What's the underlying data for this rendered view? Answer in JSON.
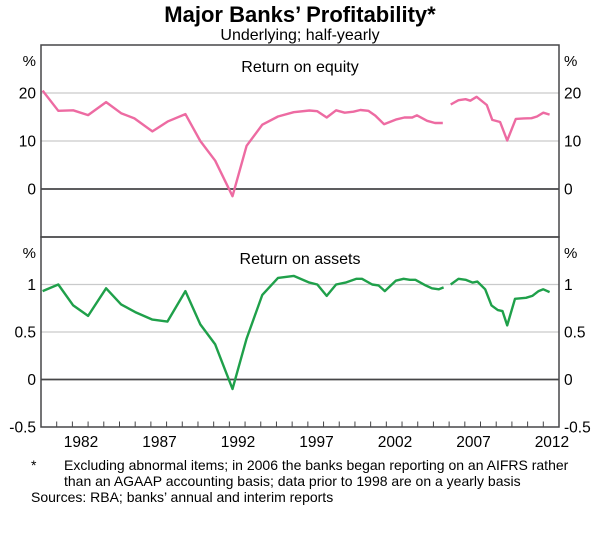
{
  "header": {
    "title": "Major Banks’ Profitability*",
    "subtitle": "Underlying; half-yearly"
  },
  "colors": {
    "roe_line": "#ed6ba2",
    "roa_line": "#1fa04a",
    "grid": "#c9cacb",
    "frame": "#464648",
    "text": "#000000",
    "background": "#ffffff"
  },
  "x_axis": {
    "range": [
      1980,
      2013
    ],
    "tick_start": 1981,
    "tick_end": 2012,
    "label_years": [
      1982,
      1987,
      1992,
      1997,
      2002,
      2007,
      2012
    ],
    "labels": [
      "1982",
      "1987",
      "1992",
      "1997",
      "2002",
      "2007",
      "2012"
    ]
  },
  "chart_data": [
    {
      "type": "line",
      "title": "Return on equity",
      "unit": "%",
      "ylim": [
        -10,
        30
      ],
      "gridlines": [
        10,
        20
      ],
      "zeroline": 0,
      "grid_on": true,
      "yticks": [
        {
          "v": 20,
          "label": "20"
        },
        {
          "v": 10,
          "label": "10"
        },
        {
          "v": 0,
          "label": "0"
        }
      ],
      "series": [
        {
          "name": "Return on equity (AGAAP, pre-2006)",
          "color_key": "roe_line",
          "points": [
            [
              1980.1,
              20.5
            ],
            [
              1981.1,
              16.3
            ],
            [
              1982.05,
              16.4
            ],
            [
              1983.0,
              15.4
            ],
            [
              1984.15,
              18.1
            ],
            [
              1985.1,
              15.8
            ],
            [
              1985.95,
              14.7
            ],
            [
              1987.1,
              12.0
            ],
            [
              1988.1,
              14.1
            ],
            [
              1989.2,
              15.6
            ],
            [
              1990.15,
              10.0
            ],
            [
              1991.1,
              5.9
            ],
            [
              1992.2,
              -1.5
            ],
            [
              1993.1,
              9.0
            ],
            [
              1994.1,
              13.4
            ],
            [
              1995.1,
              15.1
            ],
            [
              1996.1,
              16.0
            ],
            [
              1997.1,
              16.35
            ],
            [
              1997.6,
              16.2
            ],
            [
              1998.2,
              14.9
            ],
            [
              1998.8,
              16.4
            ],
            [
              1999.35,
              15.9
            ],
            [
              1999.9,
              16.1
            ],
            [
              2000.35,
              16.45
            ],
            [
              2000.85,
              16.3
            ],
            [
              2001.3,
              15.3
            ],
            [
              2001.85,
              13.5
            ],
            [
              2002.6,
              14.45
            ],
            [
              2003.15,
              14.9
            ],
            [
              2003.65,
              14.9
            ],
            [
              2003.95,
              15.35
            ],
            [
              2004.6,
              14.2
            ],
            [
              2005.1,
              13.75
            ],
            [
              2005.6,
              13.75
            ]
          ]
        },
        {
          "name": "Return on equity (AIFRS, 2006 onwards)",
          "color_key": "roe_line",
          "points": [
            [
              2006.1,
              17.6
            ],
            [
              2006.6,
              18.5
            ],
            [
              2007.05,
              18.7
            ],
            [
              2007.35,
              18.4
            ],
            [
              2007.75,
              19.2
            ],
            [
              2008.4,
              17.5
            ],
            [
              2008.75,
              14.4
            ],
            [
              2009.25,
              13.95
            ],
            [
              2009.7,
              10.1
            ],
            [
              2010.25,
              14.6
            ],
            [
              2010.75,
              14.7
            ],
            [
              2011.25,
              14.75
            ],
            [
              2011.6,
              15.1
            ],
            [
              2012.0,
              15.9
            ],
            [
              2012.4,
              15.5
            ]
          ]
        }
      ]
    },
    {
      "type": "line",
      "title": "Return on assets",
      "unit": "%",
      "ylim": [
        -0.5,
        1.5
      ],
      "gridlines": [
        0.5,
        1
      ],
      "zeroline": 0,
      "grid_on": true,
      "yticks": [
        {
          "v": 1,
          "label": "1"
        },
        {
          "v": 0.5,
          "label": "0.5"
        },
        {
          "v": 0,
          "label": "0"
        },
        {
          "v": -0.5,
          "label": "-0.5"
        }
      ],
      "series": [
        {
          "name": "Return on assets (AGAAP, pre-2006)",
          "color_key": "roa_line",
          "points": [
            [
              1980.1,
              0.93
            ],
            [
              1981.1,
              1.0
            ],
            [
              1982.05,
              0.78
            ],
            [
              1983.0,
              0.67
            ],
            [
              1984.15,
              0.96
            ],
            [
              1985.1,
              0.79
            ],
            [
              1986.0,
              0.71
            ],
            [
              1987.1,
              0.63
            ],
            [
              1988.05,
              0.61
            ],
            [
              1989.2,
              0.93
            ],
            [
              1990.15,
              0.58
            ],
            [
              1991.1,
              0.37
            ],
            [
              1992.2,
              -0.1
            ],
            [
              1993.1,
              0.43
            ],
            [
              1994.1,
              0.89
            ],
            [
              1995.1,
              1.07
            ],
            [
              1996.1,
              1.09
            ],
            [
              1997.1,
              1.02
            ],
            [
              1997.6,
              1.0
            ],
            [
              1998.2,
              0.88
            ],
            [
              1998.8,
              1.0
            ],
            [
              1999.4,
              1.02
            ],
            [
              2000.1,
              1.06
            ],
            [
              2000.45,
              1.06
            ],
            [
              2001.1,
              1.0
            ],
            [
              2001.5,
              0.99
            ],
            [
              2001.9,
              0.93
            ],
            [
              2002.6,
              1.04
            ],
            [
              2003.1,
              1.06
            ],
            [
              2003.5,
              1.05
            ],
            [
              2003.85,
              1.05
            ],
            [
              2004.5,
              0.99
            ],
            [
              2004.9,
              0.96
            ],
            [
              2005.35,
              0.95
            ],
            [
              2005.65,
              0.97
            ]
          ]
        },
        {
          "name": "Return on assets (AIFRS, 2006 onwards)",
          "color_key": "roa_line",
          "points": [
            [
              2006.1,
              1.0
            ],
            [
              2006.6,
              1.06
            ],
            [
              2007.05,
              1.05
            ],
            [
              2007.5,
              1.02
            ],
            [
              2007.8,
              1.03
            ],
            [
              2008.3,
              0.95
            ],
            [
              2008.7,
              0.78
            ],
            [
              2009.1,
              0.73
            ],
            [
              2009.4,
              0.72
            ],
            [
              2009.7,
              0.57
            ],
            [
              2010.2,
              0.85
            ],
            [
              2010.9,
              0.86
            ],
            [
              2011.3,
              0.88
            ],
            [
              2011.7,
              0.93
            ],
            [
              2012.0,
              0.95
            ],
            [
              2012.4,
              0.92
            ]
          ]
        }
      ]
    }
  ],
  "footnote": {
    "symbol": "*",
    "lines": [
      "Excluding abnormal items; in 2006 the banks began reporting on an AIFRS",
      "rather than an AGAAP accounting basis; data prior to 1998 are on a yearly",
      "basis"
    ],
    "text": "Excluding abnormal items; in 2006 the banks began reporting on an AIFRS rather than an AGAAP accounting basis; data prior to 1998 are on a yearly basis",
    "sources": "Sources: RBA; banks’ annual and interim reports"
  }
}
